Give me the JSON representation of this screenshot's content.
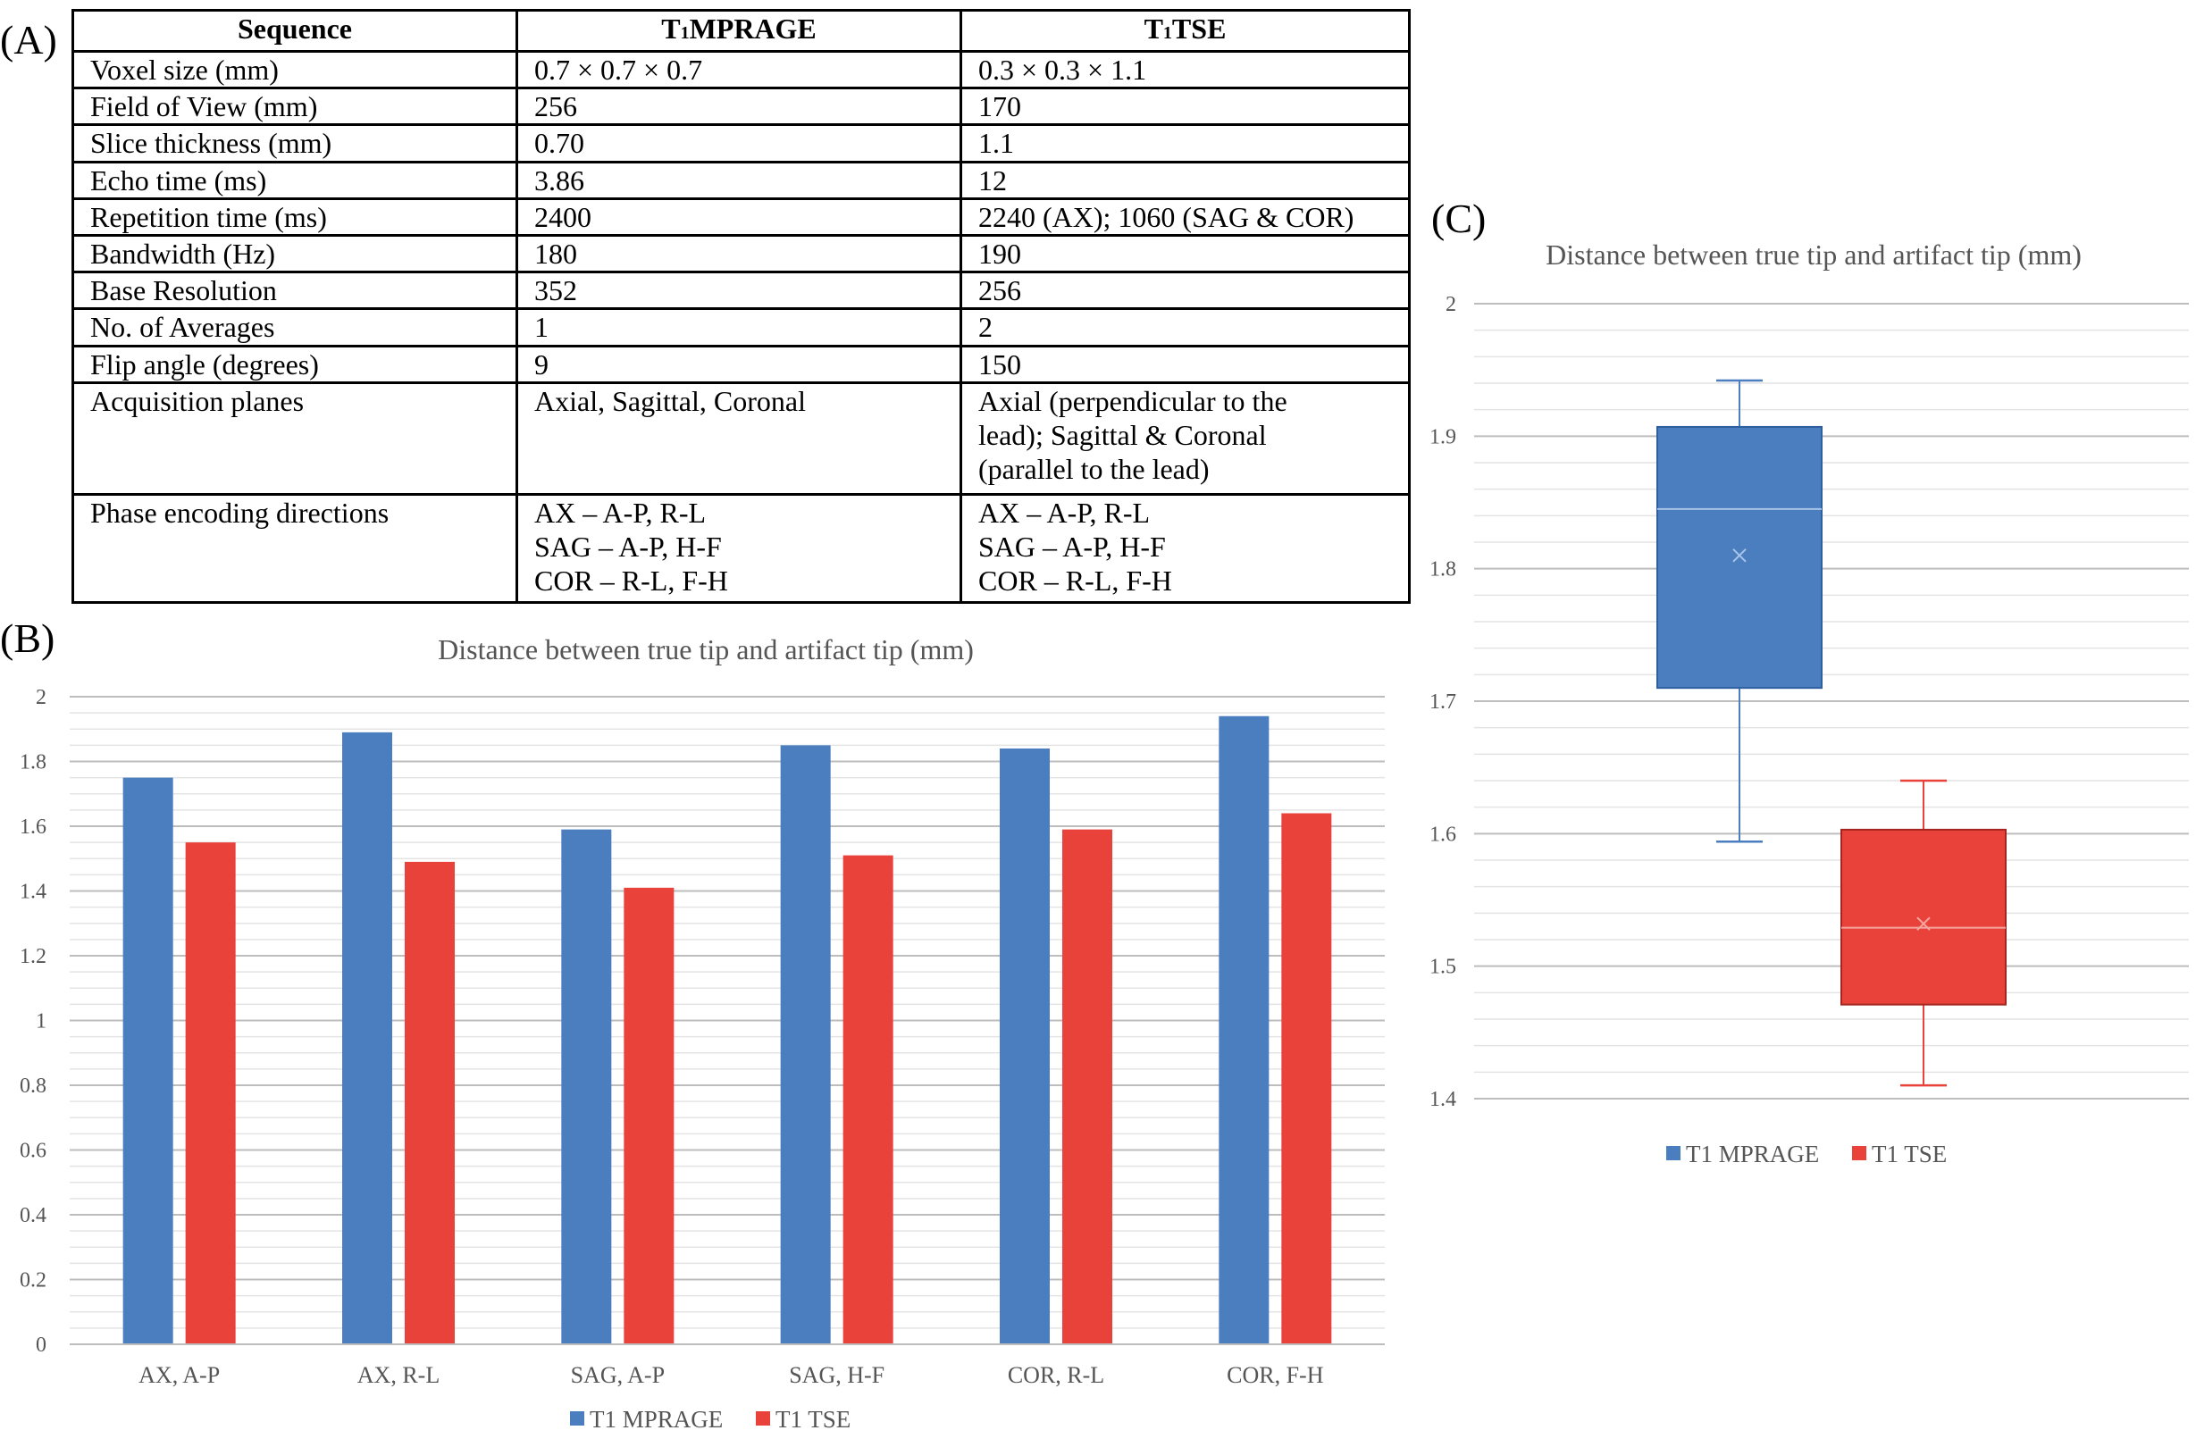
{
  "panels": {
    "a": "(A)",
    "b": "(B)",
    "c": "(C)"
  },
  "table": {
    "headers": [
      {
        "main": "Sequence",
        "sub": ""
      },
      {
        "main": "T",
        "sub": "1",
        "rest": "MPRAGE"
      },
      {
        "main": "T",
        "sub": "1",
        "rest": "TSE"
      }
    ],
    "rows": [
      [
        "Voxel size (mm)",
        "0.7 × 0.7 × 0.7",
        "0.3 × 0.3 × 1.1"
      ],
      [
        "Field of View (mm)",
        "256",
        "170"
      ],
      [
        "Slice thickness (mm)",
        "0.70",
        "1.1"
      ],
      [
        "Echo time (ms)",
        "3.86",
        "12"
      ],
      [
        "Repetition time (ms)",
        "2400",
        "2240 (AX); 1060 (SAG & COR)"
      ],
      [
        "Bandwidth (Hz)",
        "180",
        "190"
      ],
      [
        "Base Resolution",
        "352",
        "256"
      ],
      [
        "No. of Averages",
        "1",
        "2"
      ],
      [
        "Flip angle (degrees)",
        "9",
        "150"
      ],
      [
        "Acquisition planes",
        "Axial, Sagittal, Coronal",
        "Axial (perpendicular to the\nlead); Sagittal & Coronal\n(parallel to the lead)"
      ],
      [
        "Phase encoding directions",
        "AX – A-P, R-L\nSAG – A-P, H-F\nCOR – R-L, F-H",
        "AX – A-P, R-L\nSAG – A-P, H-F\nCOR – R-L, F-H"
      ]
    ]
  },
  "chart_data": [
    {
      "type": "bar",
      "title": "Distance between true tip and artifact tip (mm)",
      "categories": [
        "AX, A-P",
        "AX, R-L",
        "SAG, A-P",
        "SAG, H-F",
        "COR, R-L",
        "COR, F-H"
      ],
      "series": [
        {
          "name": "T1 MPRAGE",
          "color": "#4a7ebf",
          "values": [
            1.75,
            1.89,
            1.59,
            1.85,
            1.84,
            1.94
          ]
        },
        {
          "name": "T1 TSE",
          "color": "#e8423a",
          "values": [
            1.55,
            1.49,
            1.41,
            1.51,
            1.59,
            1.64
          ]
        }
      ],
      "ylim": [
        0,
        2
      ],
      "yticks": [
        "0",
        "0.2",
        "0.4",
        "0.6",
        "0.8",
        "1",
        "1.2",
        "1.4",
        "1.6",
        "1.8",
        "2"
      ],
      "legend": "bottom"
    },
    {
      "type": "box",
      "title": "Distance between true tip and artifact tip (mm)",
      "series": [
        {
          "name": "T1 MPRAGE",
          "color": "#4a7ebf",
          "min": 1.594,
          "q1": 1.71,
          "median": 1.845,
          "mean": 1.81,
          "q3": 1.907,
          "max": 1.942
        },
        {
          "name": "T1 TSE",
          "color": "#e8423a",
          "min": 1.41,
          "q1": 1.471,
          "median": 1.529,
          "mean": 1.532,
          "q3": 1.603,
          "max": 1.64
        }
      ],
      "ylim": [
        1.4,
        2
      ],
      "yticks": [
        "1.4",
        "1.5",
        "1.6",
        "1.7",
        "1.8",
        "1.9",
        "2"
      ],
      "legend": "bottom"
    }
  ]
}
